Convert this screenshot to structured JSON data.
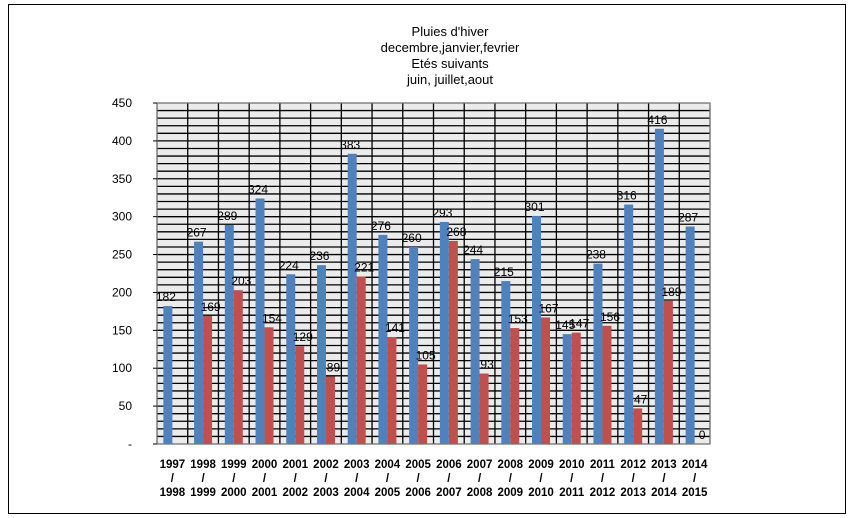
{
  "chart_data": {
    "type": "bar",
    "title": [
      "Pluies d'hiver",
      "decembre,janvier,fevrier",
      "Etés suivants",
      "juin, juillet,aout"
    ],
    "categories": [
      [
        "1997",
        "/",
        "1998"
      ],
      [
        "1998",
        "/",
        "1999"
      ],
      [
        "1999",
        "/",
        "2000"
      ],
      [
        "2000",
        "/",
        "2001"
      ],
      [
        "2001",
        "/",
        "2002"
      ],
      [
        "2002",
        "/",
        "2003"
      ],
      [
        "2003",
        "/",
        "2004"
      ],
      [
        "2004",
        "/",
        "2005"
      ],
      [
        "2005",
        "/",
        "2006"
      ],
      [
        "2006",
        "/",
        "2007"
      ],
      [
        "2007",
        "/",
        "2008"
      ],
      [
        "2008",
        "/",
        "2009"
      ],
      [
        "2009",
        "/",
        "2010"
      ],
      [
        "2010",
        "/",
        "2011"
      ],
      [
        "2011",
        "/",
        "2012"
      ],
      [
        "2012",
        "/",
        "2013"
      ],
      [
        "2013",
        "/",
        "2014"
      ],
      [
        "2014",
        "/",
        "2015"
      ]
    ],
    "series": [
      {
        "name": "Pluies d'hiver",
        "color": "#4f81bd",
        "values": [
          182,
          267,
          289,
          324,
          224,
          236,
          383,
          276,
          260,
          293,
          244,
          215,
          301,
          145,
          238,
          316,
          416,
          287
        ]
      },
      {
        "name": "Etés suivants",
        "color": "#c0504d",
        "values": [
          null,
          169,
          203,
          154,
          129,
          89,
          221,
          141,
          105,
          268,
          93,
          153,
          167,
          147,
          156,
          47,
          189,
          0
        ]
      }
    ],
    "ylim": [
      0,
      450
    ],
    "yticks": [
      {
        "v": 450,
        "t": "450"
      },
      {
        "v": 400,
        "t": "400"
      },
      {
        "v": 350,
        "t": "350"
      },
      {
        "v": 300,
        "t": "300"
      },
      {
        "v": 250,
        "t": "250"
      },
      {
        "v": 200,
        "t": "200"
      },
      {
        "v": 150,
        "t": "150"
      },
      {
        "v": 100,
        "t": "100"
      },
      {
        "v": 50,
        "t": "50"
      },
      {
        "v": 0,
        "t": "-"
      }
    ],
    "grid": true,
    "xlabel": "",
    "ylabel": ""
  }
}
